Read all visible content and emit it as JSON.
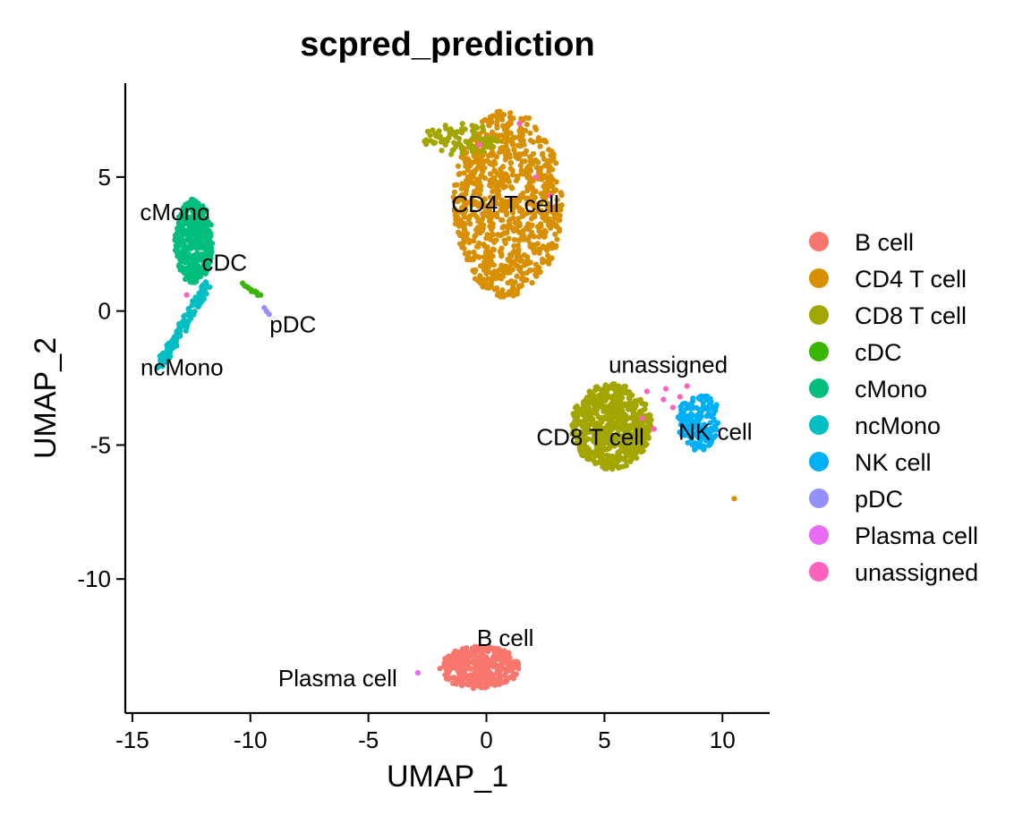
{
  "chart_data": {
    "type": "scatter",
    "title": "scpred_prediction",
    "xlabel": "UMAP_1",
    "ylabel": "UMAP_2",
    "xlim": [
      -15.3,
      12.0
    ],
    "ylim": [
      -15.0,
      8.5
    ],
    "xticks": [
      -15,
      -10,
      -5,
      0,
      5,
      10
    ],
    "xtick_labels": [
      "-15",
      "-10",
      "-5",
      "0",
      "5",
      "10"
    ],
    "yticks": [
      5,
      0,
      -5,
      -10
    ],
    "ytick_labels": [
      "5",
      "0",
      "-5",
      "-10"
    ],
    "grid": false,
    "legend_position": "right",
    "legend": [
      {
        "label": "B cell",
        "color": "#F8766D"
      },
      {
        "label": "CD4 T cell",
        "color": "#D89000"
      },
      {
        "label": "CD8 T cell",
        "color": "#A3A500"
      },
      {
        "label": "cDC",
        "color": "#39B600"
      },
      {
        "label": "cMono",
        "color": "#00BF7D"
      },
      {
        "label": "ncMono",
        "color": "#00BFC4"
      },
      {
        "label": "NK cell",
        "color": "#00B0F6"
      },
      {
        "label": "pDC",
        "color": "#9590FF"
      },
      {
        "label": "Plasma cell",
        "color": "#E76BF3"
      },
      {
        "label": "unassigned",
        "color": "#FF62BC"
      }
    ],
    "cluster_labels": [
      {
        "label": "cMono",
        "x": -13.2,
        "y": 3.4
      },
      {
        "label": "cDC",
        "x": -11.1,
        "y": 1.5
      },
      {
        "label": "pDC",
        "x": -8.2,
        "y": -0.8
      },
      {
        "label": "ncMono",
        "x": -12.9,
        "y": -2.4
      },
      {
        "label": "CD4 T cell",
        "x": 0.8,
        "y": 3.7
      },
      {
        "label": "unassigned",
        "x": 7.7,
        "y": -2.3
      },
      {
        "label": "CD8 T cell",
        "x": 4.4,
        "y": -5.0
      },
      {
        "label": "NK cell",
        "x": 9.7,
        "y": -4.8
      },
      {
        "label": "B cell",
        "x": 0.8,
        "y": -12.5
      },
      {
        "label": "Plasma cell",
        "x": -6.3,
        "y": -14.0
      }
    ],
    "clusters": [
      {
        "label": "CD4 T cell",
        "color": "#D89000",
        "shape": "blob",
        "n": 900,
        "cx": 0.9,
        "cy": 4.0,
        "rx": 2.3,
        "ry": 3.5,
        "seed": 11
      },
      {
        "label": "CD8 T cell",
        "color": "#A3A500",
        "shape": "blob",
        "n": 90,
        "cx": -1.1,
        "cy": 6.4,
        "rx": 1.6,
        "ry": 0.6,
        "seed": 12
      },
      {
        "label": "CD8 T cell",
        "color": "#A3A500",
        "shape": "blob",
        "n": 640,
        "cx": 5.3,
        "cy": -4.3,
        "rx": 1.7,
        "ry": 1.6,
        "seed": 13
      },
      {
        "label": "NK cell",
        "color": "#00B0F6",
        "shape": "blob",
        "n": 170,
        "cx": 9.0,
        "cy": -4.1,
        "rx": 0.9,
        "ry": 1.1,
        "seed": 14
      },
      {
        "label": "cMono",
        "color": "#00BF7D",
        "shape": "blob",
        "n": 420,
        "cx": -12.4,
        "cy": 2.6,
        "rx": 0.8,
        "ry": 1.6,
        "seed": 15
      },
      {
        "label": "ncMono",
        "color": "#00BFC4",
        "shape": "line",
        "n": 120,
        "x1": -11.8,
        "y1": 1.0,
        "x2": -13.8,
        "y2": -2.0,
        "spread": 0.35,
        "seed": 16
      },
      {
        "label": "cDC",
        "color": "#39B600",
        "shape": "line",
        "n": 12,
        "x1": -10.3,
        "y1": 1.0,
        "x2": -9.6,
        "y2": 0.6,
        "spread": 0.12,
        "seed": 17
      },
      {
        "label": "pDC",
        "color": "#9590FF",
        "shape": "line",
        "n": 3,
        "x1": -9.4,
        "y1": 0.1,
        "x2": -9.2,
        "y2": -0.1,
        "spread": 0.05,
        "seed": 18
      },
      {
        "label": "B cell",
        "color": "#F8766D",
        "shape": "blob",
        "n": 360,
        "cx": -0.3,
        "cy": -13.3,
        "rx": 1.7,
        "ry": 0.8,
        "seed": 19
      },
      {
        "label": "Plasma cell",
        "color": "#E76BF3",
        "shape": "points",
        "points": [
          [
            -2.9,
            -13.5
          ]
        ]
      },
      {
        "label": "unassigned",
        "color": "#FF62BC",
        "shape": "points",
        "points": [
          [
            -12.7,
            0.6
          ],
          [
            2.1,
            5.0
          ],
          [
            2.7,
            4.3
          ],
          [
            -0.3,
            6.2
          ],
          [
            1.4,
            7.0
          ],
          [
            6.8,
            -3.0
          ],
          [
            7.5,
            -3.3
          ],
          [
            7.9,
            -3.6
          ],
          [
            8.2,
            -3.2
          ],
          [
            6.6,
            -4.0
          ],
          [
            7.1,
            -4.4
          ],
          [
            7.6,
            -2.9
          ],
          [
            8.5,
            -2.8
          ]
        ]
      },
      {
        "label": "CD4 T cell",
        "color": "#D89000",
        "shape": "points",
        "points": [
          [
            10.5,
            -7.0
          ]
        ]
      }
    ]
  }
}
